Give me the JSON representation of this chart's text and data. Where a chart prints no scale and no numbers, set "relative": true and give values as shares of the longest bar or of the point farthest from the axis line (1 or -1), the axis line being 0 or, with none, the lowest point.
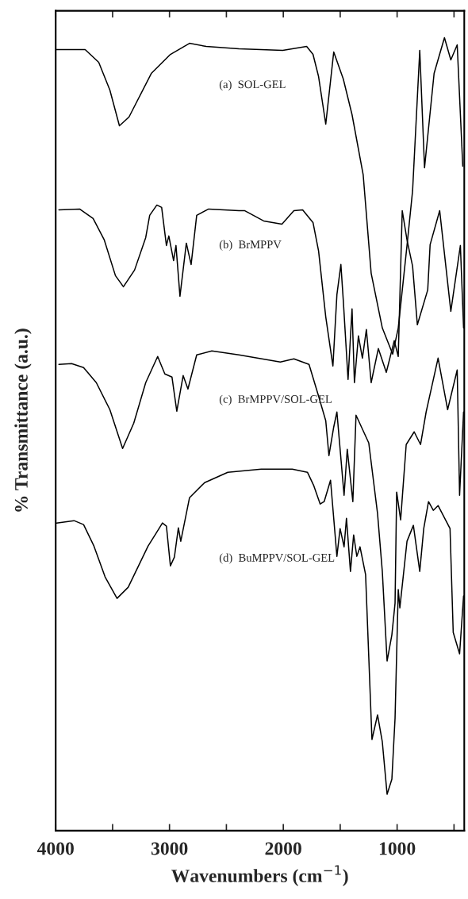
{
  "chart_data": {
    "type": "line",
    "relative": true,
    "xlabel": "Wavenumbers (cm$^{−1}$)",
    "ylabel": "% Transmittance (a.u.)",
    "xlim": [
      4000,
      410
    ],
    "xticks": [
      4000,
      {
        "value": 3500,
        "label": null
      },
      3000,
      {
        "value": 2500,
        "label": null
      },
      2000,
      {
        "value": 1500,
        "label": null
      },
      1000,
      {
        "value": 500,
        "label": null
      }
    ],
    "grid": false,
    "legend": false,
    "marker": "none",
    "line_style": "solid",
    "series": [
      {
        "name": "(a)  SOL-GEL",
        "color": "#000000",
        "x": [
          4000,
          3972,
          3741,
          3622,
          3524,
          3440,
          3356,
          3160,
          2992,
          2824,
          2677,
          2390,
          2005,
          1795,
          1739,
          1690,
          1627,
          1557,
          1473,
          1396,
          1298,
          1228,
          1130,
          1039,
          990,
          913,
          864,
          801,
          759,
          675,
          584,
          528,
          472,
          423
        ],
        "values": [
          0.985,
          0.985,
          0.985,
          0.969,
          0.934,
          0.889,
          0.9,
          0.955,
          0.979,
          0.993,
          0.989,
          0.986,
          0.984,
          0.989,
          0.979,
          0.951,
          0.891,
          0.982,
          0.948,
          0.903,
          0.827,
          0.703,
          0.634,
          0.601,
          0.634,
          0.738,
          0.807,
          0.984,
          0.836,
          0.955,
          1.0,
          0.972,
          0.991,
          0.838
        ]
      },
      {
        "name": "(b)  BrMPPV",
        "color": "#000000",
        "x": [
          3972,
          3790,
          3671,
          3573,
          3475,
          3405,
          3307,
          3209,
          3174,
          3111,
          3069,
          3027,
          3006,
          2964,
          2943,
          2908,
          2852,
          2810,
          2761,
          2656,
          2390,
          2341,
          2173,
          2012,
          1907,
          1830,
          1739,
          1690,
          1627,
          1564,
          1529,
          1494,
          1473,
          1431,
          1396,
          1375,
          1340,
          1305,
          1270,
          1228,
          1165,
          1095,
          1025,
          990,
          955,
          913,
          864,
          822,
          731,
          710,
          626,
          528,
          444,
          416
        ],
        "values": [
          0.783,
          0.784,
          0.772,
          0.745,
          0.7,
          0.686,
          0.707,
          0.748,
          0.776,
          0.789,
          0.786,
          0.738,
          0.75,
          0.719,
          0.738,
          0.674,
          0.741,
          0.714,
          0.776,
          0.784,
          0.782,
          0.782,
          0.769,
          0.765,
          0.782,
          0.783,
          0.767,
          0.731,
          0.648,
          0.586,
          0.676,
          0.714,
          0.669,
          0.569,
          0.658,
          0.565,
          0.624,
          0.596,
          0.632,
          0.565,
          0.608,
          0.578,
          0.618,
          0.598,
          0.782,
          0.745,
          0.712,
          0.638,
          0.682,
          0.739,
          0.782,
          0.655,
          0.738,
          0.634
        ]
      },
      {
        "name": "(c)  BrMPPV/SOL-GEL",
        "color": "#000000",
        "x": [
          3972,
          3860,
          3755,
          3643,
          3524,
          3412,
          3314,
          3209,
          3104,
          3041,
          2978,
          2936,
          2880,
          2838,
          2761,
          2628,
          2390,
          2026,
          1907,
          1774,
          1690,
          1627,
          1599,
          1557,
          1529,
          1466,
          1438,
          1389,
          1361,
          1249,
          1172,
          1130,
          1088,
          1046,
          1018,
          1004,
          969,
          920,
          850,
          794,
          745,
          640,
          556,
          472,
          451,
          416
        ],
        "values": [
          0.588,
          0.589,
          0.584,
          0.565,
          0.531,
          0.482,
          0.514,
          0.565,
          0.598,
          0.576,
          0.572,
          0.529,
          0.574,
          0.557,
          0.6,
          0.605,
          0.6,
          0.591,
          0.595,
          0.588,
          0.548,
          0.517,
          0.473,
          0.509,
          0.528,
          0.423,
          0.481,
          0.415,
          0.524,
          0.489,
          0.4,
          0.327,
          0.214,
          0.247,
          0.287,
          0.427,
          0.392,
          0.487,
          0.503,
          0.487,
          0.528,
          0.596,
          0.531,
          0.581,
          0.423,
          0.528
        ]
      },
      {
        "name": "(d)  BuMPPV/SOL-GEL",
        "color": "#000000",
        "x": [
          3993,
          3839,
          3755,
          3664,
          3566,
          3461,
          3363,
          3188,
          3118,
          3062,
          3027,
          2992,
          2957,
          2922,
          2901,
          2824,
          2691,
          2488,
          2194,
          1921,
          1788,
          1732,
          1676,
          1641,
          1585,
          1529,
          1501,
          1466,
          1445,
          1410,
          1382,
          1354,
          1326,
          1277,
          1249,
          1221,
          1172,
          1130,
          1088,
          1046,
          1018,
          990,
          976,
          913,
          857,
          801,
          766,
          724,
          682,
          640,
          535,
          507,
          451,
          416
        ],
        "values": [
          0.388,
          0.391,
          0.386,
          0.359,
          0.32,
          0.293,
          0.307,
          0.359,
          0.375,
          0.388,
          0.384,
          0.334,
          0.345,
          0.382,
          0.365,
          0.42,
          0.439,
          0.452,
          0.456,
          0.456,
          0.452,
          0.435,
          0.412,
          0.415,
          0.442,
          0.346,
          0.381,
          0.358,
          0.394,
          0.327,
          0.373,
          0.346,
          0.358,
          0.323,
          0.219,
          0.115,
          0.146,
          0.112,
          0.046,
          0.065,
          0.142,
          0.304,
          0.281,
          0.365,
          0.385,
          0.327,
          0.381,
          0.415,
          0.404,
          0.41,
          0.381,
          0.25,
          0.223,
          0.296
        ]
      }
    ]
  }
}
